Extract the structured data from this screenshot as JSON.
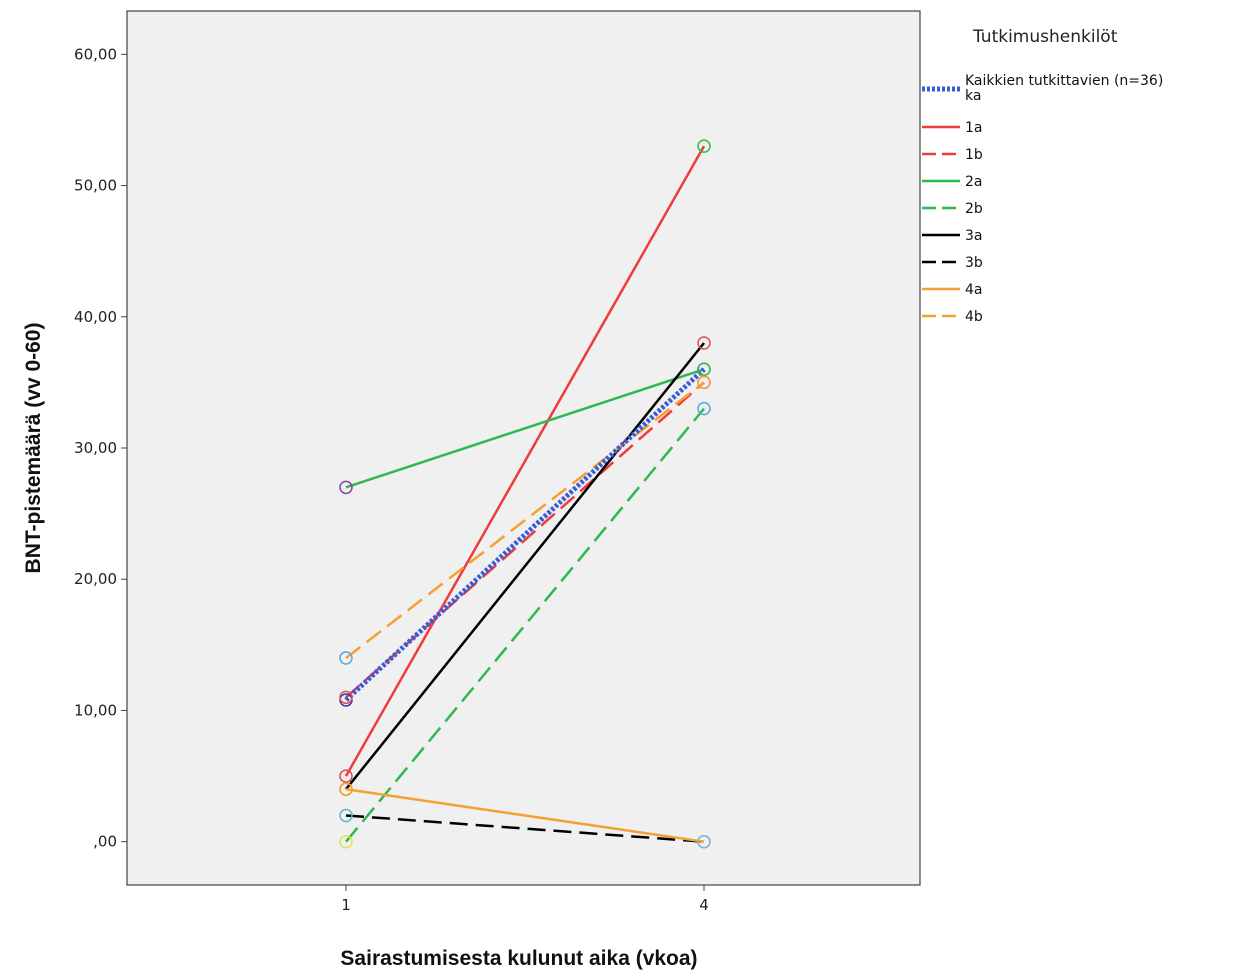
{
  "chart_data": {
    "type": "line",
    "title": "",
    "xlabel": "Sairastumisesta kulunut aika (vkoa)",
    "ylabel": "BNT-pistemäärä (vv 0-60)",
    "x": [
      1,
      4
    ],
    "x_ticks": [
      "1",
      "4"
    ],
    "ylim": [
      -3.3,
      63.3
    ],
    "y_ticks": [
      0,
      10,
      20,
      30,
      40,
      50,
      60
    ],
    "y_tick_labels": [
      ",00",
      "10,00",
      "20,00",
      "30,00",
      "40,00",
      "50,00",
      "60,00"
    ],
    "grid": false,
    "legend": {
      "title": "Tutkimushenkilöt",
      "placement": "right"
    },
    "plot_background": "#f0f0f0",
    "series": [
      {
        "name": "Kaikkien tutkittavien (n=36) ka",
        "values": [
          10.8,
          36.0
        ],
        "color": "#3a5bd9",
        "style": "dotted-thick",
        "marker_colors": [
          "#3a3aa0",
          "#7b4fb8"
        ]
      },
      {
        "name": "1a",
        "values": [
          5,
          53
        ],
        "color": "#ee3b3b",
        "style": "solid",
        "marker_colors": [
          "#e05050",
          "#2fbf4f"
        ]
      },
      {
        "name": "1b",
        "values": [
          11,
          35
        ],
        "color": "#ee3b3b",
        "style": "dashed",
        "marker_colors": [
          "#e05050",
          "#e05050"
        ]
      },
      {
        "name": "2a",
        "values": [
          27,
          36
        ],
        "color": "#2fb84f",
        "style": "solid",
        "marker_colors": [
          "#8a3aa8",
          "#2fbf4f"
        ]
      },
      {
        "name": "2b",
        "values": [
          0,
          33
        ],
        "color": "#2fb84f",
        "style": "dashed",
        "marker_colors": [
          "#e8e050",
          "#5aa8d8"
        ]
      },
      {
        "name": "3a",
        "values": [
          4,
          38
        ],
        "color": "#000000",
        "style": "solid",
        "marker_colors": [
          "#c09090",
          "#e05050"
        ]
      },
      {
        "name": "3b",
        "values": [
          2,
          0
        ],
        "color": "#000000",
        "style": "dashed",
        "marker_colors": [
          "#5ab8d8",
          "#5ab8d8"
        ]
      },
      {
        "name": "4a",
        "values": [
          4,
          0
        ],
        "color": "#f5a030",
        "style": "solid",
        "marker_colors": [
          "#f5a030",
          "#8ab8c8"
        ]
      },
      {
        "name": "4b",
        "values": [
          14,
          35
        ],
        "color": "#f5a030",
        "style": "dashed",
        "marker_colors": [
          "#5aa8d8",
          "#f5a030"
        ]
      }
    ]
  }
}
